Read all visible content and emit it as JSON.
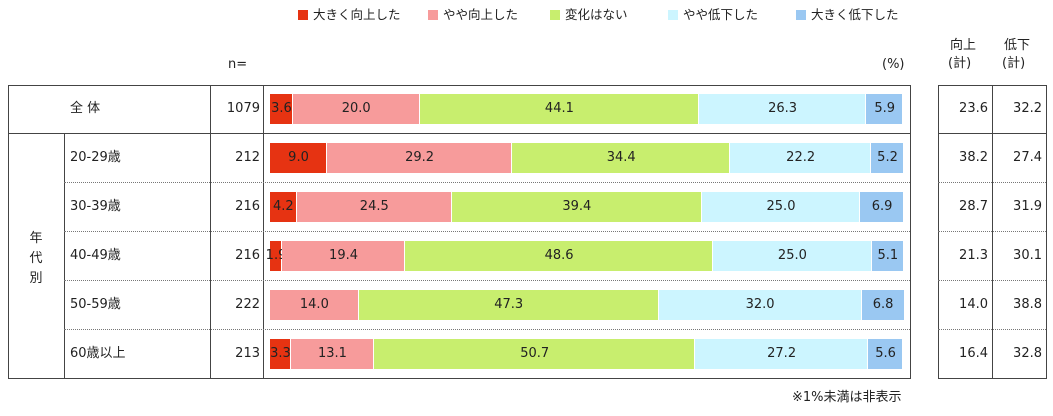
{
  "chart_data": {
    "type": "bar",
    "stacked": true,
    "orientation": "horizontal",
    "series": [
      {
        "name": "大きく向上した",
        "color": "#e63312"
      },
      {
        "name": "やや向上した",
        "color": "#f79b9b"
      },
      {
        "name": "変化はない",
        "color": "#c8ee6e"
      },
      {
        "name": "やや低下した",
        "color": "#ccf5ff"
      },
      {
        "name": "大きく低下した",
        "color": "#9ac8f2"
      }
    ],
    "n_header": "n=",
    "unit_label": "(%)",
    "col_headers": [
      {
        "line1": "向上",
        "line2": "(計)"
      },
      {
        "line1": "低下",
        "line2": "(計)"
      }
    ],
    "group_label": "年代別",
    "rows": [
      {
        "label": "全 体",
        "n": "1079",
        "values": [
          3.6,
          20.0,
          44.1,
          26.3,
          5.9
        ],
        "labels": [
          "3.6",
          "20.0",
          "44.1",
          "26.3",
          "5.9"
        ],
        "up": "23.6",
        "down": "32.2"
      },
      {
        "label": "20-29歳",
        "n": "212",
        "values": [
          9.0,
          29.2,
          34.4,
          22.2,
          5.2
        ],
        "labels": [
          "9.0",
          "29.2",
          "34.4",
          "22.2",
          "5.2"
        ],
        "up": "38.2",
        "down": "27.4"
      },
      {
        "label": "30-39歳",
        "n": "216",
        "values": [
          4.2,
          24.5,
          39.4,
          25.0,
          6.9
        ],
        "labels": [
          "4.2",
          "24.5",
          "39.4",
          "25.0",
          "6.9"
        ],
        "up": "28.7",
        "down": "31.9"
      },
      {
        "label": "40-49歳",
        "n": "216",
        "values": [
          1.9,
          19.4,
          48.6,
          25.0,
          5.1
        ],
        "labels": [
          "1.9",
          "19.4",
          "48.6",
          "25.0",
          "5.1"
        ],
        "up": "21.3",
        "down": "30.1"
      },
      {
        "label": "50-59歳",
        "n": "222",
        "values": [
          0,
          14.0,
          47.3,
          32.0,
          6.8
        ],
        "labels": [
          "",
          "14.0",
          "47.3",
          "32.0",
          "6.8"
        ],
        "up": "14.0",
        "down": "38.8"
      },
      {
        "label": "60歳以上",
        "n": "213",
        "values": [
          3.3,
          13.1,
          50.7,
          27.2,
          5.6
        ],
        "labels": [
          "3.3",
          "13.1",
          "50.7",
          "27.2",
          "5.6"
        ],
        "up": "16.4",
        "down": "32.8"
      }
    ],
    "footnote": "※1%未満は非表示"
  }
}
